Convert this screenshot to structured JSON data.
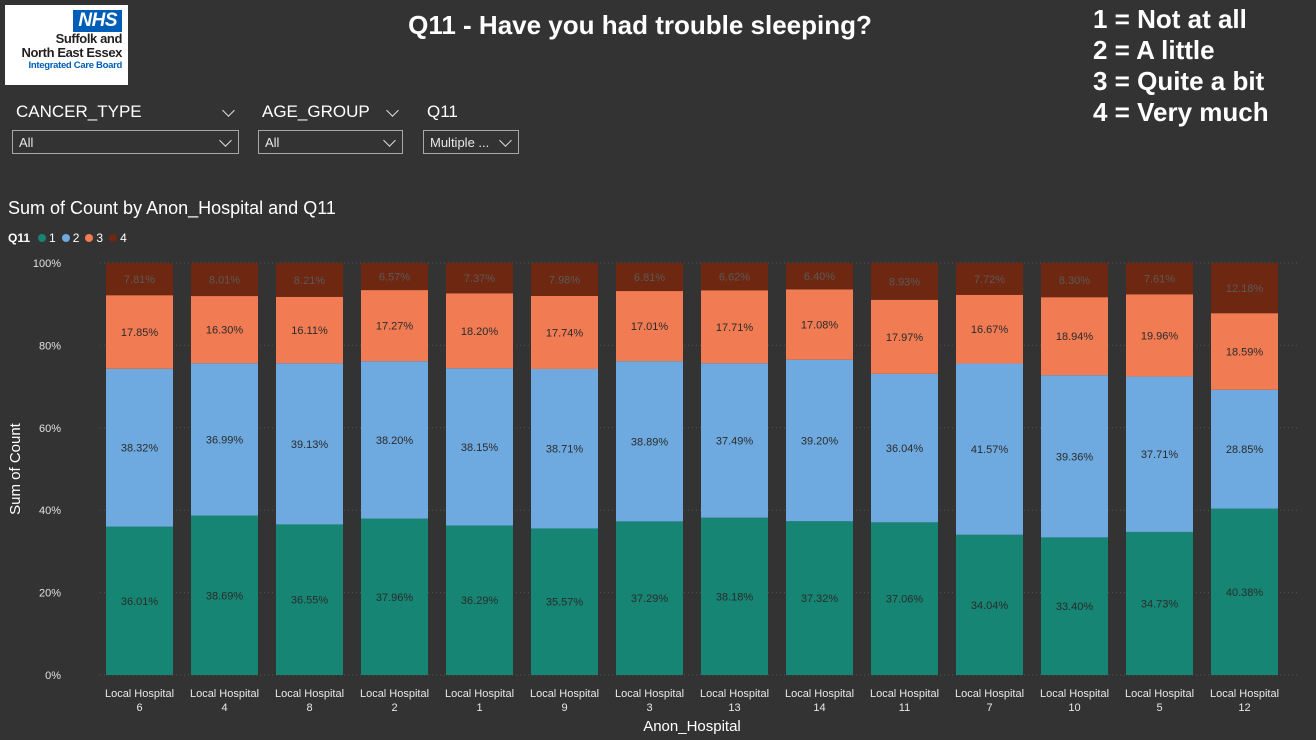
{
  "logo": {
    "badge": "NHS",
    "line1": "Suffolk and",
    "line2": "North East Essex",
    "line3": "Integrated Care Board"
  },
  "page_title": "Q11 - Have you had trouble sleeping?",
  "scale_key": [
    "1 = Not at all",
    "2 = A little",
    "3 = Quite a bit",
    "4 = Very much"
  ],
  "slicers": [
    {
      "label": "CANCER_TYPE",
      "value": "All"
    },
    {
      "label": "AGE_GROUP",
      "value": "All"
    },
    {
      "label": "Q11",
      "value": "Multiple ..."
    }
  ],
  "colors": {
    "s1": "#168573",
    "s2": "#6eaadf",
    "s3": "#f17b53",
    "s4": "#6e2710",
    "background": "#333333"
  },
  "chart_data": {
    "type": "bar",
    "stacked": "100%",
    "title": "Sum of Count by Anon_Hospital and Q11",
    "xlabel": "Anon_Hospital",
    "ylabel": "Sum of Count",
    "ylim": [
      0,
      100
    ],
    "yticks": [
      "0%",
      "20%",
      "40%",
      "60%",
      "80%",
      "100%"
    ],
    "legend_title": "Q11",
    "legend_position": "top-left",
    "categories": [
      [
        "Local Hospital",
        "6"
      ],
      [
        "Local Hospital",
        "4"
      ],
      [
        "Local Hospital",
        "8"
      ],
      [
        "Local Hospital",
        "2"
      ],
      [
        "Local Hospital",
        "1"
      ],
      [
        "Local Hospital",
        "9"
      ],
      [
        "Local Hospital",
        "3"
      ],
      [
        "Local Hospital",
        "13"
      ],
      [
        "Local Hospital",
        "14"
      ],
      [
        "Local Hospital",
        "11"
      ],
      [
        "Local Hospital",
        "7"
      ],
      [
        "Local Hospital",
        "10"
      ],
      [
        "Local Hospital",
        "5"
      ],
      [
        "Local Hospital",
        "12"
      ]
    ],
    "series": [
      {
        "name": "1",
        "values": [
          36.01,
          38.69,
          36.55,
          37.96,
          36.29,
          35.57,
          37.29,
          38.18,
          37.32,
          37.06,
          34.04,
          33.4,
          34.73,
          40.38
        ],
        "labels": [
          "36.01%",
          "38.69%",
          "36.55%",
          "37.96%",
          "36.29%",
          "35.57%",
          "37.29%",
          "38.18%",
          "37.32%",
          "37.06%",
          "34.04%",
          "33.40%",
          "34.73%",
          "40.38%"
        ]
      },
      {
        "name": "2",
        "values": [
          38.32,
          36.99,
          39.13,
          38.2,
          38.15,
          38.71,
          38.89,
          37.49,
          39.2,
          36.04,
          41.57,
          39.36,
          37.71,
          28.85
        ],
        "labels": [
          "38.32%",
          "36.99%",
          "39.13%",
          "38.20%",
          "38.15%",
          "38.71%",
          "38.89%",
          "37.49%",
          "39.20%",
          "36.04%",
          "41.57%",
          "39.36%",
          "37.71%",
          "28.85%"
        ]
      },
      {
        "name": "3",
        "values": [
          17.85,
          16.3,
          16.11,
          17.27,
          18.2,
          17.74,
          17.01,
          17.71,
          17.08,
          17.97,
          16.67,
          18.94,
          19.96,
          18.59
        ],
        "labels": [
          "17.85%",
          "16.30%",
          "16.11%",
          "17.27%",
          "18.20%",
          "17.74%",
          "17.01%",
          "17.71%",
          "17.08%",
          "17.97%",
          "16.67%",
          "18.94%",
          "19.96%",
          "18.59%"
        ]
      },
      {
        "name": "4",
        "values": [
          7.81,
          8.01,
          8.21,
          6.57,
          7.37,
          7.98,
          6.81,
          6.62,
          6.4,
          8.93,
          7.72,
          8.3,
          7.61,
          12.18
        ],
        "labels": [
          "7.81%",
          "8.01%",
          "8.21%",
          "6.57%",
          "7.37%",
          "7.98%",
          "6.81%",
          "6.62%",
          "6.40%",
          "8.93%",
          "7.72%",
          "8.30%",
          "7.61%",
          "12.18%"
        ]
      }
    ]
  }
}
